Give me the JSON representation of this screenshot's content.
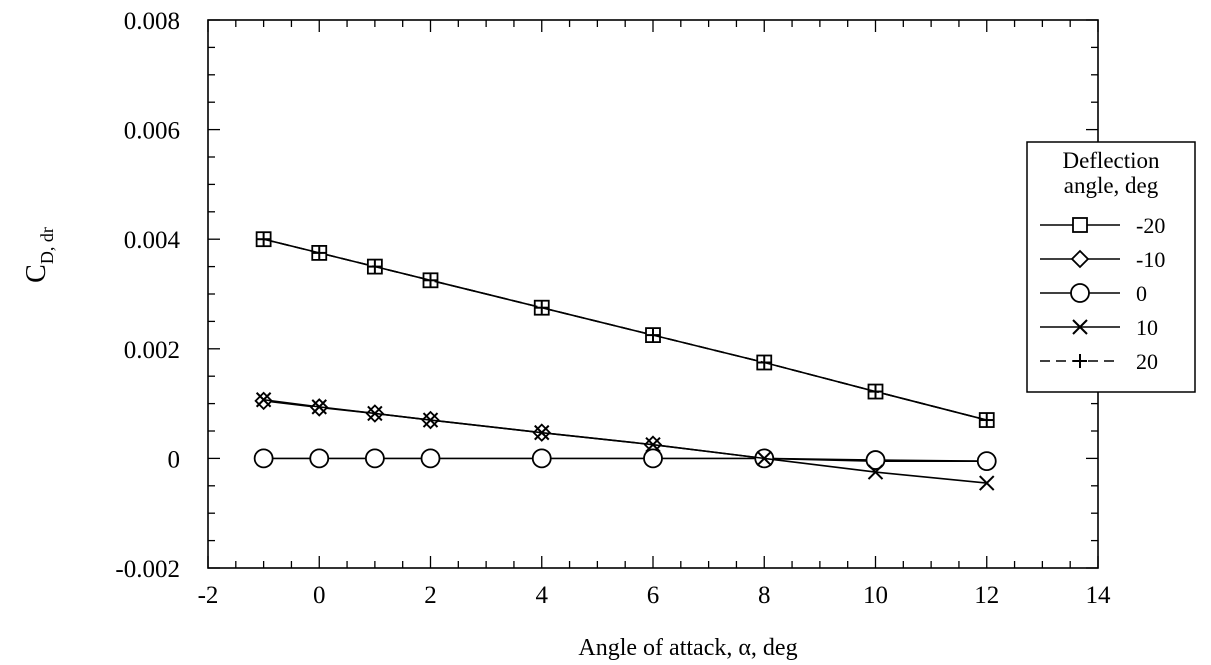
{
  "chart_data": {
    "type": "line",
    "title": "",
    "xlabel": "Angle of attack, α, deg",
    "ylabel_main": "C",
    "ylabel_sub": "D, dr",
    "xlim": [
      -2,
      14
    ],
    "ylim": [
      -0.002,
      0.008
    ],
    "x_ticks": [
      -2,
      0,
      2,
      4,
      6,
      8,
      10,
      12,
      14
    ],
    "x_tick_labels": [
      "-2",
      "0",
      "2",
      "4",
      "6",
      "8",
      "10",
      "12",
      "14"
    ],
    "y_ticks": [
      -0.002,
      0,
      0.002,
      0.004,
      0.006,
      0.008
    ],
    "y_tick_labels": [
      "-0.002",
      "0",
      "0.002",
      "0.004",
      "0.006",
      "0.008"
    ],
    "grid": false,
    "legend": {
      "title_line1": "Deflection",
      "title_line2": "angle, deg",
      "placement": "right"
    },
    "x": [
      -1,
      0,
      1,
      2,
      4,
      6,
      8,
      10,
      12
    ],
    "series": [
      {
        "name": "-20",
        "marker": "square",
        "values": [
          0.004,
          0.00375,
          0.0035,
          0.00325,
          0.00275,
          0.00225,
          0.00175,
          0.00122,
          0.0007
        ]
      },
      {
        "name": "-10",
        "marker": "diamond",
        "values": [
          0.00105,
          0.00093,
          0.00082,
          0.0007,
          0.00047,
          0.00025,
          0.0,
          -5e-05,
          -5e-05
        ]
      },
      {
        "name": "0",
        "marker": "circle",
        "values": [
          0.0,
          0.0,
          0.0,
          0.0,
          0.0,
          0.0,
          0.0,
          -3e-05,
          -5e-05
        ]
      },
      {
        "name": "10",
        "marker": "x",
        "values": [
          0.00107,
          0.00094,
          0.00082,
          0.0007,
          0.00047,
          0.00025,
          0.0,
          -0.00025,
          -0.00045
        ]
      },
      {
        "name": "20",
        "marker": "plus",
        "values": [
          0.004,
          0.00375,
          0.0035,
          0.00325,
          0.00275,
          0.00225,
          0.00175,
          0.00122,
          0.0007
        ]
      }
    ]
  }
}
